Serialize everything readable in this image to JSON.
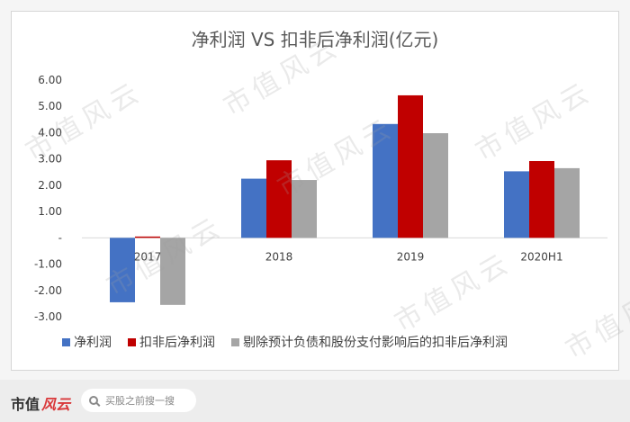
{
  "chart_data": {
    "type": "bar",
    "title": "净利润 VS 扣非后净利润(亿元)",
    "categories": [
      "2017",
      "2018",
      "2019",
      "2020H1"
    ],
    "series": [
      {
        "name": "净利润",
        "color": "#4472c4",
        "values": [
          -2.45,
          2.25,
          4.33,
          2.53
        ]
      },
      {
        "name": "扣非后净利润",
        "color": "#c00000",
        "values": [
          0.05,
          2.95,
          5.42,
          2.92
        ]
      },
      {
        "name": "剔除预计负债和股份支付影响后的扣非后净利润",
        "color": "#a5a5a5",
        "values": [
          -2.55,
          2.2,
          3.98,
          2.65
        ]
      }
    ],
    "y_ticks": [
      "6.00",
      "5.00",
      "4.00",
      "3.00",
      "2.00",
      "1.00",
      "-",
      "-1.00",
      "-2.00",
      "-3.00"
    ],
    "ylim": [
      -3,
      6
    ],
    "legend_position": "bottom"
  },
  "watermark": "市值风云",
  "footer": {
    "brand_text": "市值",
    "brand_mark": "风云",
    "search_placeholder": "买股之前搜一搜"
  }
}
